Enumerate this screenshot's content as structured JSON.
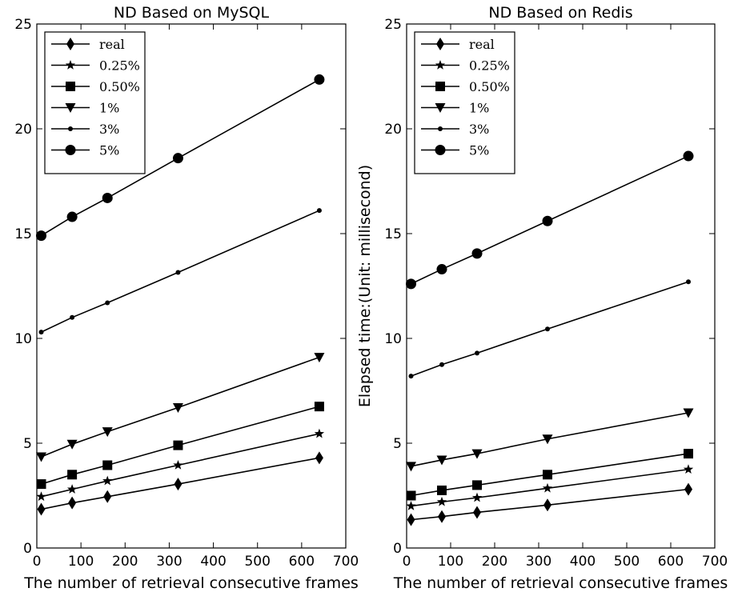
{
  "chart_data": [
    {
      "type": "line",
      "title": "ND Based on MySQL",
      "xlabel": "The number of retrieval consecutive frames",
      "ylabel": "",
      "xlim": [
        0,
        700
      ],
      "ylim": [
        0,
        25
      ],
      "xticks": [
        "0",
        "100",
        "200",
        "300",
        "400",
        "500",
        "600",
        "700"
      ],
      "yticks": [
        "0",
        "5",
        "10",
        "15",
        "20",
        "25"
      ],
      "legend_position": "top-left",
      "grid": false,
      "x": [
        10,
        80,
        160,
        320,
        640
      ],
      "series": [
        {
          "name": "real",
          "marker": "diamond",
          "values": [
            1.85,
            2.15,
            2.45,
            3.05,
            4.3
          ]
        },
        {
          "name": "0.25%",
          "marker": "star",
          "values": [
            2.45,
            2.8,
            3.2,
            3.95,
            5.45
          ]
        },
        {
          "name": "0.50%",
          "marker": "square",
          "values": [
            3.05,
            3.5,
            3.95,
            4.9,
            6.75
          ]
        },
        {
          "name": "1%",
          "marker": "triangle",
          "values": [
            4.35,
            4.95,
            5.55,
            6.7,
            9.1
          ]
        },
        {
          "name": "3%",
          "marker": "dot",
          "values": [
            10.3,
            11.0,
            11.7,
            13.15,
            16.1
          ]
        },
        {
          "name": "5%",
          "marker": "circle",
          "values": [
            14.9,
            15.8,
            16.7,
            18.6,
            22.35
          ]
        }
      ]
    },
    {
      "type": "line",
      "title": "ND Based on Redis",
      "xlabel": "The number of retrieval consecutive frames",
      "ylabel": "Elapsed time:(Unit: millisecond)",
      "xlim": [
        0,
        700
      ],
      "ylim": [
        0,
        25
      ],
      "xticks": [
        "0",
        "100",
        "200",
        "300",
        "400",
        "500",
        "600",
        "700"
      ],
      "yticks": [
        "0",
        "5",
        "10",
        "15",
        "20",
        "25"
      ],
      "legend_position": "top-left",
      "grid": false,
      "x": [
        10,
        80,
        160,
        320,
        640
      ],
      "series": [
        {
          "name": "real",
          "marker": "diamond",
          "values": [
            1.35,
            1.5,
            1.7,
            2.05,
            2.8
          ]
        },
        {
          "name": "0.25%",
          "marker": "star",
          "values": [
            2.0,
            2.2,
            2.4,
            2.85,
            3.75
          ]
        },
        {
          "name": "0.50%",
          "marker": "square",
          "values": [
            2.5,
            2.75,
            3.0,
            3.5,
            4.5
          ]
        },
        {
          "name": "1%",
          "marker": "triangle",
          "values": [
            3.9,
            4.2,
            4.5,
            5.2,
            6.45
          ]
        },
        {
          "name": "3%",
          "marker": "dot",
          "values": [
            8.2,
            8.75,
            9.3,
            10.45,
            12.7
          ]
        },
        {
          "name": "5%",
          "marker": "circle",
          "values": [
            12.6,
            13.3,
            14.05,
            15.6,
            18.7
          ]
        }
      ]
    }
  ],
  "colors": {
    "line": "#000000",
    "background": "#ffffff"
  }
}
